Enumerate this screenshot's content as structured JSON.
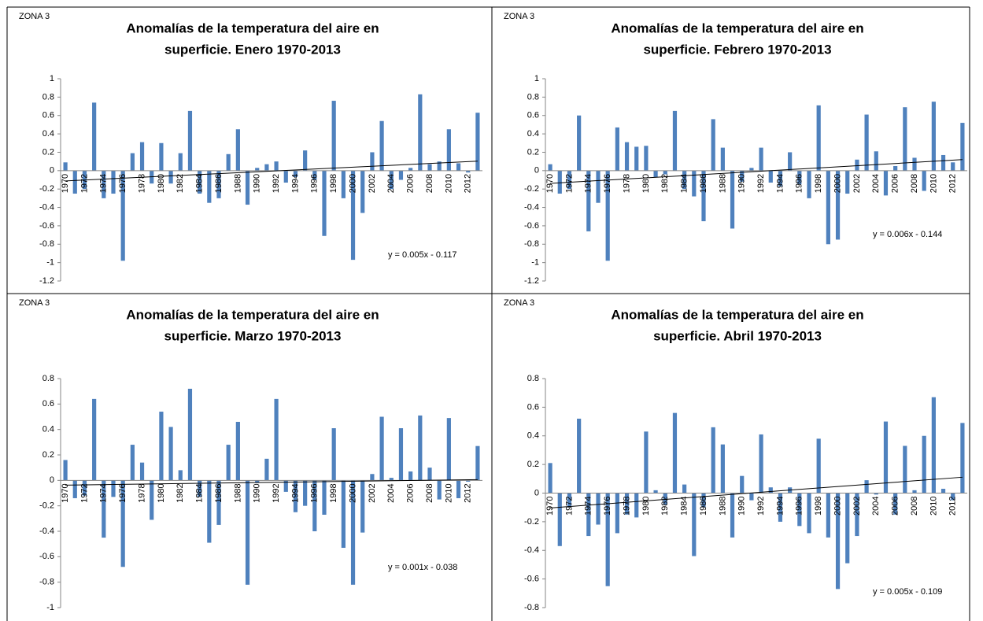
{
  "chart_data": [
    {
      "type": "bar",
      "label": "ZONA 3",
      "title": [
        "Anomalías de la temperatura del aire en",
        "superficie. Enero 1970-2013"
      ],
      "categories": [
        "1970",
        null,
        "1972",
        null,
        "1974",
        null,
        "1976",
        null,
        "1978",
        null,
        "1980",
        null,
        "1982",
        null,
        "1984",
        null,
        "1986",
        null,
        "1988",
        null,
        "1990",
        null,
        "1992",
        null,
        "1994",
        null,
        "1996",
        null,
        "1998",
        null,
        "2000",
        null,
        "2002",
        null,
        "2004",
        null,
        "2006",
        null,
        "2008",
        null,
        "2010",
        null,
        "2012",
        null
      ],
      "values": [
        0.09,
        -0.25,
        -0.2,
        0.74,
        -0.3,
        -0.25,
        -0.98,
        0.19,
        0.31,
        -0.14,
        0.3,
        -0.14,
        0.19,
        0.65,
        -0.25,
        -0.35,
        -0.3,
        0.18,
        0.45,
        -0.37,
        0.03,
        0.07,
        0.1,
        -0.13,
        -0.07,
        0.22,
        -0.1,
        -0.71,
        0.76,
        -0.3,
        -0.97,
        -0.46,
        0.2,
        0.54,
        -0.2,
        -0.1,
        0.03,
        0.83,
        0.07,
        0.1,
        0.45,
        0.08,
        -0.02,
        0.63
      ],
      "color": "#4f81bd",
      "ylim": [
        -1.2,
        1
      ],
      "yticks": [
        -1.2,
        -1,
        -0.8,
        -0.6,
        -0.4,
        -0.2,
        0,
        0.2,
        0.4,
        0.6,
        0.8,
        1
      ],
      "trendline": {
        "slope": 0.005,
        "intercept": -0.117,
        "label": "y = 0.005x - 0.117"
      }
    },
    {
      "type": "bar",
      "label": "ZONA 3",
      "title": [
        "Anomalías de la temperatura del aire en",
        "superficie. Febrero 1970-2013"
      ],
      "categories": [
        "1970",
        null,
        "1972",
        null,
        "1974",
        null,
        "1976",
        null,
        "1978",
        null,
        "1980",
        null,
        "1982",
        null,
        "1984",
        null,
        "1986",
        null,
        "1988",
        null,
        "1990",
        null,
        "1992",
        null,
        "1994",
        null,
        "1996",
        null,
        "1998",
        null,
        "2000",
        null,
        "2002",
        null,
        "2004",
        null,
        "2006",
        null,
        "2008",
        null,
        "2010",
        null,
        "2012",
        null
      ],
      "values": [
        0.07,
        -0.25,
        -0.2,
        0.6,
        -0.66,
        -0.35,
        -0.98,
        0.47,
        0.31,
        0.26,
        0.27,
        -0.07,
        -0.04,
        0.65,
        -0.2,
        -0.28,
        -0.55,
        0.56,
        0.25,
        -0.63,
        -0.12,
        0.03,
        0.25,
        -0.13,
        -0.17,
        0.2,
        -0.15,
        -0.3,
        0.71,
        -0.8,
        -0.75,
        -0.25,
        0.12,
        0.61,
        0.21,
        -0.27,
        0.05,
        0.69,
        0.14,
        -0.22,
        0.75,
        0.17,
        0.09,
        0.52
      ],
      "color": "#4f81bd",
      "ylim": [
        -1.2,
        1
      ],
      "yticks": [
        -1.2,
        -1,
        -0.8,
        -0.6,
        -0.4,
        -0.2,
        0,
        0.2,
        0.4,
        0.6,
        0.8,
        1
      ],
      "trendline": {
        "slope": 0.006,
        "intercept": -0.144,
        "label": "y = 0.006x - 0.144"
      }
    },
    {
      "type": "bar",
      "label": "ZONA 3",
      "title": [
        "Anomalías de la temperatura del aire en",
        "superficie. Marzo 1970-2013"
      ],
      "categories": [
        "1970",
        null,
        "1972",
        null,
        "1974",
        null,
        "1976",
        null,
        "1978",
        null,
        "1980",
        null,
        "1982",
        null,
        "1984",
        null,
        "1986",
        null,
        "1988",
        null,
        "1990",
        null,
        "1992",
        null,
        "1994",
        null,
        "1996",
        null,
        "1998",
        null,
        "2000",
        null,
        "2002",
        null,
        "2004",
        null,
        "2006",
        null,
        "2008",
        null,
        "2010",
        null,
        "2012",
        null
      ],
      "values": [
        0.16,
        -0.14,
        -0.12,
        0.64,
        -0.45,
        -0.13,
        -0.68,
        0.28,
        0.14,
        -0.31,
        0.54,
        0.42,
        0.08,
        0.72,
        -0.13,
        -0.49,
        -0.35,
        0.28,
        0.46,
        -0.82,
        -0.02,
        0.17,
        0.64,
        -0.09,
        -0.25,
        -0.2,
        -0.4,
        -0.27,
        0.41,
        -0.53,
        -0.82,
        -0.41,
        0.05,
        0.5,
        0.02,
        0.41,
        0.07,
        0.51,
        0.1,
        -0.15,
        0.49,
        -0.14,
        -0.01,
        0.27
      ],
      "color": "#4f81bd",
      "ylim": [
        -1,
        0.8
      ],
      "yticks": [
        -1,
        -0.8,
        -0.6,
        -0.4,
        -0.2,
        0,
        0.2,
        0.4,
        0.6,
        0.8
      ],
      "trendline": {
        "slope": 0.001,
        "intercept": -0.038,
        "label": "y = 0.001x - 0.038"
      }
    },
    {
      "type": "bar",
      "label": "ZONA 3",
      "title": [
        "Anomalías de la temperatura del aire en",
        "superficie. Abril 1970-2013"
      ],
      "categories": [
        "1970",
        null,
        "1972",
        null,
        "1974",
        null,
        "1976",
        null,
        "1978",
        null,
        "1980",
        null,
        "1982",
        null,
        "1984",
        null,
        "1986",
        null,
        "1988",
        null,
        "1990",
        null,
        "1992",
        null,
        "1994",
        null,
        "1996",
        null,
        "1998",
        null,
        "2000",
        null,
        "2002",
        null,
        "2004",
        null,
        "2006",
        null,
        "2008",
        null,
        "2010",
        null,
        "2012",
        null
      ],
      "values": [
        0.21,
        -0.37,
        -0.1,
        0.52,
        -0.3,
        -0.22,
        -0.65,
        -0.28,
        -0.15,
        -0.17,
        0.43,
        0.02,
        -0.08,
        0.56,
        0.06,
        -0.44,
        -0.1,
        0.46,
        0.34,
        -0.31,
        0.12,
        -0.05,
        0.41,
        0.04,
        -0.2,
        0.04,
        -0.23,
        -0.28,
        0.38,
        -0.31,
        -0.67,
        -0.49,
        -0.3,
        0.09,
        -0.01,
        0.5,
        -0.15,
        0.33,
        0.02,
        0.4,
        0.67,
        0.03,
        -0.05,
        0.49
      ],
      "color": "#4f81bd",
      "ylim": [
        -0.8,
        0.8
      ],
      "yticks": [
        -0.8,
        -0.6,
        -0.4,
        -0.2,
        0,
        0.2,
        0.4,
        0.6,
        0.8
      ],
      "trendline": {
        "slope": 0.005,
        "intercept": -0.109,
        "label": "y = 0.005x - 0.109"
      }
    }
  ]
}
